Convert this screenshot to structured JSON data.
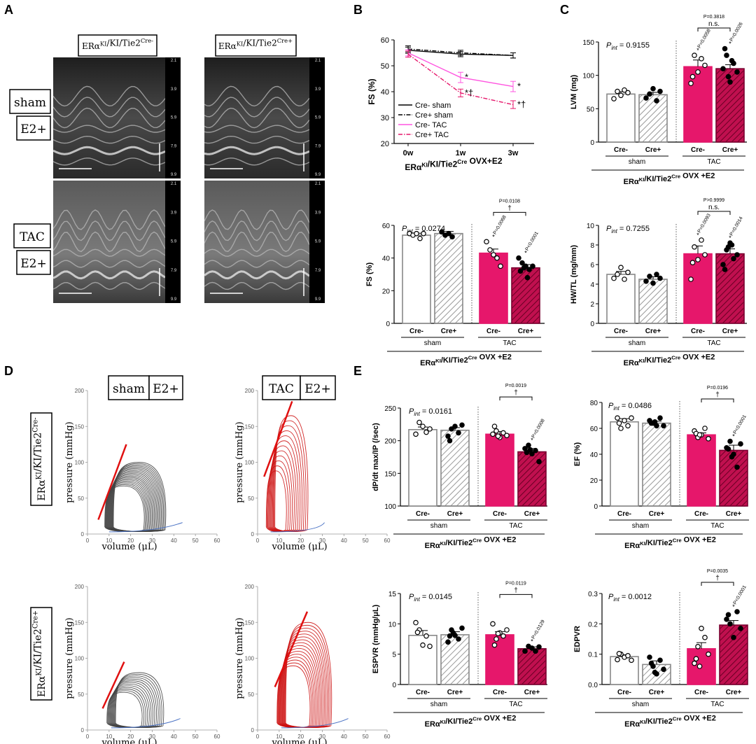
{
  "figure": {
    "panel_letters": [
      "A",
      "B",
      "C",
      "D",
      "E"
    ]
  },
  "colors": {
    "tac": "#e6176b",
    "line_cre_tac": "#ff55e0",
    "pv_sham": "#444444",
    "pv_tac": "#cc1111",
    "espvr_line": "#e01010",
    "edpvr_curve": "#4a72c4"
  },
  "panel_a": {
    "headers": [
      "ERα^KI/KI/Tie2^Cre-",
      "ERα^KI/KI/Tie2^Cre+"
    ],
    "row_labels": [
      [
        "sham",
        "E2+"
      ],
      [
        "TAC",
        "E2+"
      ]
    ],
    "depth_ticks": [
      "2.1",
      "3.9",
      "5.9",
      "7.9",
      "9.9"
    ]
  },
  "panel_d": {
    "headers": [
      [
        "sham",
        "E2+"
      ],
      [
        "TAC",
        "E2+"
      ]
    ],
    "row_labels": [
      "ERα^KI/KI/Tie2^Cre-",
      "ERα^KI/KI/Tie2^Cre+"
    ],
    "xlabel": "volume (μL)",
    "ylabel": "pressure (mmHg)",
    "x_ticks": [
      "0",
      "10",
      "20",
      "30",
      "40",
      "50",
      "60"
    ],
    "y_ticks": [
      "0",
      "50",
      "100",
      "150",
      "200"
    ]
  },
  "chart_data": [
    {
      "id": "B_line",
      "type": "line",
      "ylabel": "FS (%)",
      "xlabel": "ERα^KI/KI/Tie2^Cre OVX+E2",
      "categories": [
        "0w",
        "1w",
        "3w"
      ],
      "ylim": [
        20,
        60
      ],
      "yticks": [
        20,
        30,
        40,
        50,
        60
      ],
      "legend_position": "bottom-left",
      "series": [
        {
          "name": "Cre- sham",
          "values": [
            56,
            54.5,
            54
          ],
          "err": [
            1.2,
            1.0,
            1.0
          ],
          "style": "solid",
          "color": "#000000",
          "marks": [
            "",
            "",
            ""
          ]
        },
        {
          "name": "Cre+ sham",
          "values": [
            56.5,
            55,
            54
          ],
          "err": [
            1.2,
            1.0,
            1.0
          ],
          "style": "dashdot",
          "color": "#000000",
          "marks": [
            "",
            "",
            ""
          ]
        },
        {
          "name": "Cre- TAC",
          "values": [
            55,
            45.5,
            42
          ],
          "err": [
            1.2,
            2.0,
            2.0
          ],
          "style": "solid",
          "color": "#ff55e0",
          "marks": [
            "",
            "*",
            "*"
          ]
        },
        {
          "name": "Cre+ TAC",
          "values": [
            54.5,
            39.5,
            35
          ],
          "err": [
            1.2,
            1.5,
            1.5
          ],
          "style": "dashdot",
          "color": "#e6176b",
          "marks": [
            "",
            "*†",
            "*†"
          ]
        }
      ]
    },
    {
      "id": "B_bar",
      "type": "bar",
      "ylabel": "FS (%)",
      "ylim": [
        0,
        60
      ],
      "yticks": [
        0,
        20,
        40,
        60
      ],
      "p_int": "0.0274",
      "categories": [
        "Cre-",
        "Cre+",
        "Cre-",
        "Cre+"
      ],
      "groups": [
        "sham",
        "TAC"
      ],
      "group_label": "ERα^KI/KI/Tie2^Cre  OVX +E2",
      "values": [
        54,
        55,
        43,
        34
      ],
      "errors": [
        1.2,
        1.3,
        2.5,
        2.0
      ],
      "points": [
        [
          55,
          54,
          55,
          52,
          55
        ],
        [
          56,
          54,
          55,
          53
        ],
        [
          50,
          45,
          42,
          40,
          35
        ],
        [
          40,
          37,
          35,
          33,
          35,
          32,
          34,
          28
        ]
      ],
      "point_marks": [
        "",
        "",
        "*",
        "*"
      ],
      "p_values": [
        "",
        "",
        "P=0.0068",
        "P<0.0001"
      ],
      "bracket": {
        "label": "P=0.0108",
        "mark": "†"
      }
    },
    {
      "id": "C_top",
      "type": "bar",
      "ylabel": "LVM (mg)",
      "ylim": [
        0,
        150
      ],
      "yticks": [
        0,
        50,
        100,
        150
      ],
      "p_int": "0.9155",
      "categories": [
        "Cre-",
        "Cre+",
        "Cre-",
        "Cre+"
      ],
      "groups": [
        "sham",
        "TAC"
      ],
      "group_label": "ERα^KI/KI/Tie2^Cre  OVX +E2",
      "values": [
        72,
        71,
        113,
        110
      ],
      "errors": [
        3.5,
        3.5,
        10,
        6
      ],
      "points": [
        [
          65,
          76,
          70,
          78,
          74
        ],
        [
          66,
          72,
          80,
          62,
          76
        ],
        [
          88,
          130,
          105,
          125,
          115,
          98
        ],
        [
          110,
          130,
          90,
          118,
          105,
          140,
          98,
          122
        ]
      ],
      "point_marks": [
        "",
        "",
        "*",
        "*"
      ],
      "p_values": [
        "",
        "",
        "P=0.0058",
        "P=0.0026"
      ],
      "bracket": {
        "label": "P=0.3818",
        "mark": "n.s."
      }
    },
    {
      "id": "C_bottom",
      "type": "bar",
      "ylabel": "HW/TL (mg/mm)",
      "ylim": [
        0,
        10
      ],
      "yticks": [
        0,
        2,
        4,
        6,
        8,
        10
      ],
      "p_int": "0.7255",
      "categories": [
        "Cre-",
        "Cre+",
        "Cre-",
        "Cre+"
      ],
      "groups": [
        "sham",
        "TAC"
      ],
      "group_label": "ERα^KI/KI/Tie2^Cre  OVX +E2",
      "values": [
        5.0,
        4.5,
        7.1,
        7.1
      ],
      "errors": [
        0.3,
        0.25,
        0.8,
        0.5
      ],
      "points": [
        [
          4.6,
          5.0,
          5.7,
          4.5,
          5.2
        ],
        [
          4.3,
          4.8,
          4.1,
          5.0,
          4.6
        ],
        [
          4.5,
          7.8,
          6.5,
          8.5,
          7.0,
          6.2
        ],
        [
          6.0,
          7.5,
          8.2,
          6.6,
          7.0,
          5.5,
          7.8,
          8.0
        ]
      ],
      "point_marks": [
        "",
        "",
        "*",
        "*"
      ],
      "p_values": [
        "",
        "",
        "P=0.0093",
        "P=0.0014"
      ],
      "bracket": {
        "label": "P>0.9999",
        "mark": "n.s."
      }
    },
    {
      "id": "E_dpdt",
      "type": "bar",
      "ylabel": "dP/dt max/IP (/sec)",
      "ylim": [
        100,
        250
      ],
      "yticks": [
        100,
        150,
        200,
        250
      ],
      "p_int": "0.0161",
      "categories": [
        "Cre-",
        "Cre+",
        "Cre-",
        "Cre+"
      ],
      "groups": [
        "sham",
        "TAC"
      ],
      "group_label": "ERα^KI/KI/Tie2^Cre  OVX +E2",
      "values": [
        217,
        216,
        210,
        183
      ],
      "errors": [
        4,
        4,
        4,
        5
      ],
      "points": [
        [
          210,
          228,
          222,
          213,
          218
        ],
        [
          207,
          218,
          222,
          212,
          224,
          200
        ],
        [
          210,
          215,
          205,
          212,
          208,
          222,
          207
        ],
        [
          188,
          193,
          180,
          185,
          168,
          182,
          186
        ]
      ],
      "point_marks": [
        "",
        "",
        "",
        "*"
      ],
      "p_values": [
        "",
        "",
        "",
        "P=0.0008"
      ],
      "bracket": {
        "label": "P=0.0019",
        "mark": "†"
      }
    },
    {
      "id": "E_ef",
      "type": "bar",
      "ylabel": "EF (%)",
      "ylim": [
        0,
        80
      ],
      "yticks": [
        0,
        20,
        40,
        60,
        80
      ],
      "p_int": "0.0486",
      "categories": [
        "Cre-",
        "Cre+",
        "Cre-",
        "Cre+"
      ],
      "groups": [
        "sham",
        "TAC"
      ],
      "group_label": "ERα^KI/KI/Tie2^Cre  OVX +E2",
      "values": [
        65,
        64,
        55,
        43
      ],
      "errors": [
        2.5,
        1.5,
        1.5,
        4
      ],
      "points": [
        [
          68,
          60,
          66,
          62,
          68,
          64
        ],
        [
          66,
          64,
          62,
          68,
          62,
          64,
          65
        ],
        [
          58,
          53,
          55,
          60,
          52,
          56,
          55
        ],
        [
          45,
          50,
          40,
          30,
          48,
          44,
          38
        ]
      ],
      "point_marks": [
        "",
        "",
        "",
        "*"
      ],
      "p_values": [
        "",
        "",
        "",
        "P<0.0001"
      ],
      "bracket": {
        "label": "P=0.0196",
        "mark": "†"
      }
    },
    {
      "id": "E_espvr",
      "type": "bar",
      "ylabel": "ESPVR (mmHg/μL)",
      "ylim": [
        0,
        15
      ],
      "yticks": [
        0,
        5,
        10,
        15
      ],
      "p_int": "0.0145",
      "categories": [
        "Cre-",
        "Cre+",
        "Cre-",
        "Cre+"
      ],
      "groups": [
        "sham",
        "TAC"
      ],
      "group_label": "ERα^KI/KI/Tie2^Cre  OVX +E2",
      "values": [
        8.1,
        8.2,
        8.2,
        5.9
      ],
      "errors": [
        0.8,
        0.5,
        0.5,
        0.3
      ],
      "points": [
        [
          10.2,
          9.0,
          6.5,
          8.0,
          6.3,
          8.6
        ],
        [
          7.0,
          9.0,
          8.1,
          7.5,
          9.3,
          8.0,
          8.5
        ],
        [
          10.0,
          7.5,
          8.5,
          8.0,
          9.0,
          6.5,
          8.4
        ],
        [
          5.5,
          6.3,
          6.0,
          5.5,
          6.2
        ]
      ],
      "point_marks": [
        "",
        "",
        "",
        "*"
      ],
      "p_values": [
        "",
        "",
        "",
        "P=0.0129"
      ],
      "bracket": {
        "label": "P=0.0119",
        "mark": "†"
      }
    },
    {
      "id": "E_edpvr",
      "type": "bar",
      "ylabel": "EDPVR",
      "ylim": [
        0,
        0.3
      ],
      "yticks": [
        0.0,
        0.1,
        0.2,
        0.3
      ],
      "p_int": "0.0012",
      "categories": [
        "Cre-",
        "Cre+",
        "Cre-",
        "Cre+"
      ],
      "groups": [
        "sham",
        "TAC"
      ],
      "group_label": "ERα^KI/KI/Tie2^Cre  OVX +E2",
      "values": [
        0.092,
        0.066,
        0.118,
        0.196
      ],
      "errors": [
        0.006,
        0.012,
        0.02,
        0.015
      ],
      "points": [
        [
          0.082,
          0.1,
          0.09,
          0.095,
          0.08,
          0.102
        ],
        [
          0.09,
          0.06,
          0.035,
          0.08,
          0.05,
          0.07,
          0.04
        ],
        [
          0.07,
          0.125,
          0.185,
          0.155,
          0.1,
          0.085,
          0.06
        ],
        [
          0.215,
          0.2,
          0.155,
          0.24,
          0.185,
          0.23
        ]
      ],
      "point_marks": [
        "",
        "",
        "",
        "*"
      ],
      "p_values": [
        "",
        "",
        "",
        "P<0.0001"
      ],
      "bracket": {
        "label": "P=0.0035",
        "mark": "†"
      }
    }
  ]
}
